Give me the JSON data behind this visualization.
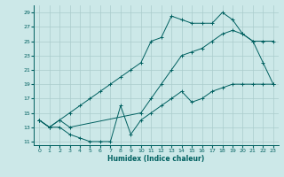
{
  "xlabel": "Humidex (Indice chaleur)",
  "bg_color": "#cce8e8",
  "grid_color": "#aacccc",
  "line_color": "#006060",
  "xlim": [
    -0.5,
    23.5
  ],
  "ylim": [
    10.5,
    30
  ],
  "yticks": [
    11,
    13,
    15,
    17,
    19,
    21,
    23,
    25,
    27,
    29
  ],
  "xticks": [
    0,
    1,
    2,
    3,
    4,
    5,
    6,
    7,
    8,
    9,
    10,
    11,
    12,
    13,
    14,
    15,
    16,
    17,
    18,
    19,
    20,
    21,
    22,
    23
  ],
  "line1_x": [
    0,
    1,
    2,
    3,
    4,
    5,
    6,
    7,
    8,
    9,
    10,
    11,
    12,
    13,
    14,
    15,
    16,
    17,
    18,
    19,
    20,
    21,
    22,
    23
  ],
  "line1_y": [
    14,
    13,
    13,
    12,
    11.5,
    11,
    11,
    11,
    16,
    12,
    14,
    15,
    16,
    17,
    18,
    16.5,
    17,
    18,
    18.5,
    19,
    19,
    19,
    19,
    19
  ],
  "line2_x": [
    0,
    1,
    2,
    3,
    4,
    5,
    6,
    7,
    8,
    9,
    10,
    11,
    12,
    13,
    14,
    15,
    16,
    17,
    18,
    19,
    20,
    21,
    22,
    23
  ],
  "line2_y": [
    14,
    13,
    14,
    15,
    16,
    17,
    18,
    19,
    20,
    21,
    22,
    25,
    25.5,
    28.5,
    28,
    27.5,
    27.5,
    27.5,
    29,
    28,
    26,
    25,
    22,
    19
  ],
  "line3_x": [
    0,
    1,
    2,
    3,
    10,
    11,
    12,
    13,
    14,
    15,
    16,
    17,
    18,
    19,
    20,
    21,
    22,
    23
  ],
  "line3_y": [
    14,
    13,
    14,
    13,
    15,
    17,
    19,
    21,
    23,
    23.5,
    24,
    25,
    26,
    26.5,
    26,
    25,
    25,
    25
  ]
}
